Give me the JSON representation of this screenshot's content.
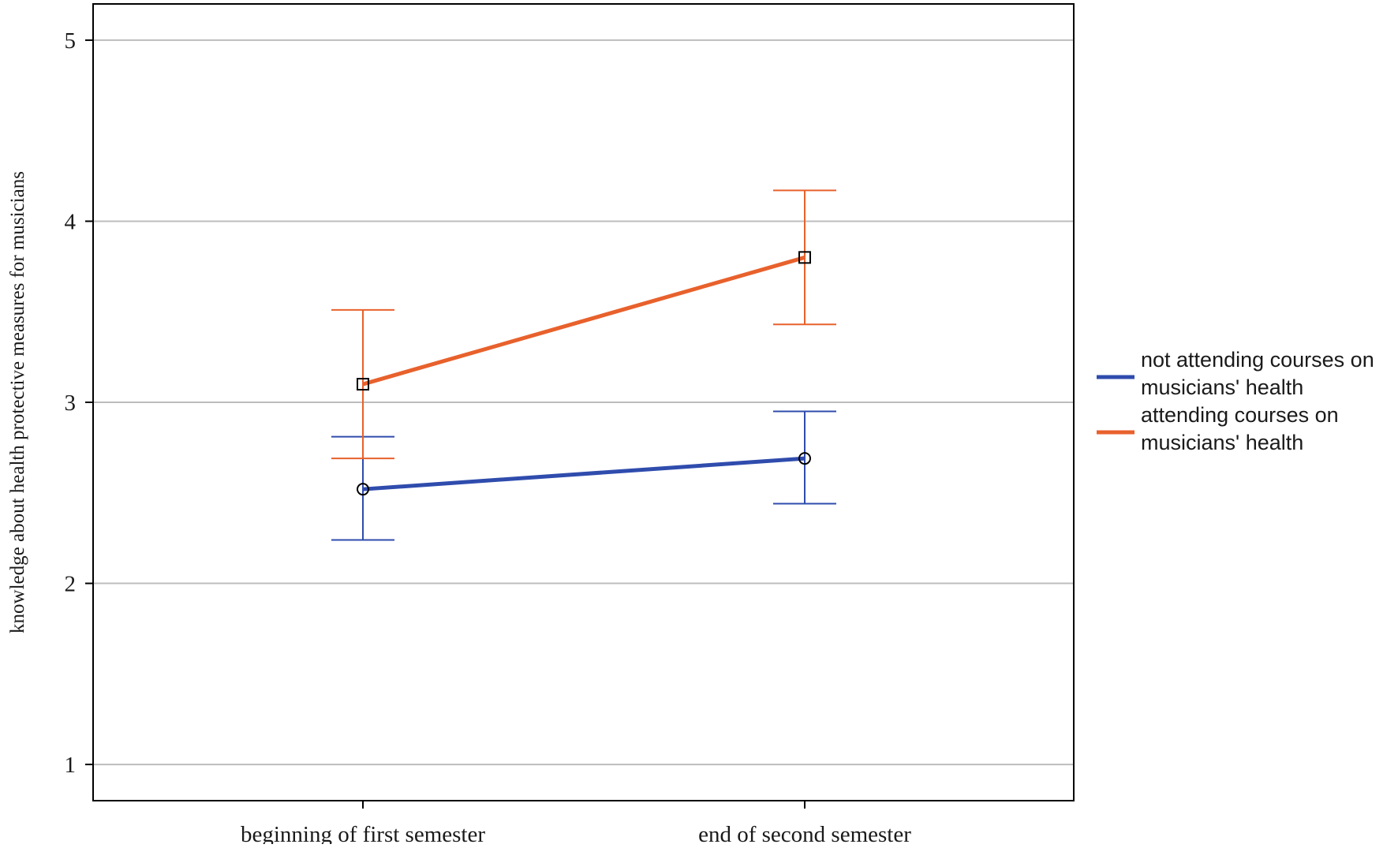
{
  "chart_data": {
    "type": "line",
    "title": "",
    "xlabel": "",
    "ylabel": "knowledge about health protective measures for musicians",
    "categories": [
      "beginning of first semester",
      "end of second semester"
    ],
    "ylim": [
      0.8,
      5.2
    ],
    "yticks": [
      1,
      2,
      3,
      4,
      5
    ],
    "grid": true,
    "legend_position": "right",
    "series": [
      {
        "name": "not attending courses on musicians' health",
        "legend_lines": [
          "not attending courses on",
          "musicians' health"
        ],
        "color": "#2f4cad",
        "marker": "circle",
        "values": [
          2.52,
          2.69
        ],
        "error_low": [
          2.24,
          2.44
        ],
        "error_high": [
          2.81,
          2.95
        ]
      },
      {
        "name": "attending courses on musicians' health",
        "legend_lines": [
          "attending courses on",
          "musicians' health"
        ],
        "color": "#e8612c",
        "marker": "square",
        "values": [
          3.1,
          3.8
        ],
        "error_low": [
          2.69,
          3.43
        ],
        "error_high": [
          3.51,
          4.17
        ]
      }
    ]
  }
}
